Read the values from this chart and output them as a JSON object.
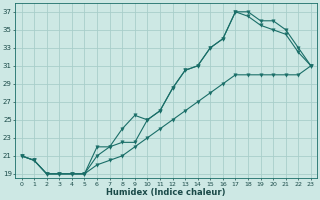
{
  "xlabel": "Humidex (Indice chaleur)",
  "bg_color": "#cde8e4",
  "grid_color": "#a8ceca",
  "line_color": "#1a6e68",
  "xlim": [
    -0.5,
    23.5
  ],
  "ylim": [
    18.5,
    38.0
  ],
  "xticks": [
    0,
    1,
    2,
    3,
    4,
    5,
    6,
    7,
    8,
    9,
    10,
    11,
    12,
    13,
    14,
    15,
    16,
    17,
    18,
    19,
    20,
    21,
    22,
    23
  ],
  "yticks": [
    19,
    21,
    23,
    25,
    27,
    29,
    31,
    33,
    35,
    37
  ],
  "line1_x": [
    0,
    1,
    2,
    3,
    4,
    5,
    6,
    7,
    8,
    9,
    10,
    11,
    12,
    13,
    14,
    15,
    16,
    17,
    18,
    19,
    20,
    21,
    22,
    23
  ],
  "line1_y": [
    21,
    20.5,
    19,
    19,
    19,
    19,
    22,
    22,
    22.5,
    22.5,
    25,
    26,
    28.5,
    30.5,
    31,
    33,
    34,
    37,
    36.5,
    35.5,
    35,
    34.5,
    32.5,
    31
  ],
  "line2_x": [
    0,
    1,
    2,
    3,
    4,
    5,
    6,
    7,
    8,
    9,
    10,
    11,
    12,
    13,
    14,
    15,
    16,
    17,
    18,
    19,
    20,
    21,
    22,
    23
  ],
  "line2_y": [
    21,
    20.5,
    19,
    19,
    19,
    19,
    21,
    22,
    24,
    25.5,
    25,
    26,
    28.5,
    30.5,
    31,
    33,
    34,
    37,
    37,
    36,
    36,
    35,
    33,
    31
  ],
  "line3_x": [
    0,
    1,
    2,
    3,
    4,
    5,
    6,
    7,
    8,
    9,
    10,
    11,
    12,
    13,
    14,
    15,
    16,
    17,
    18,
    19,
    20,
    21,
    22,
    23
  ],
  "line3_y": [
    21,
    20.5,
    19,
    19,
    19,
    19,
    20,
    20.5,
    21,
    22,
    23,
    24,
    25,
    26,
    27,
    28,
    29,
    30,
    30,
    30,
    30,
    30,
    30,
    31
  ]
}
